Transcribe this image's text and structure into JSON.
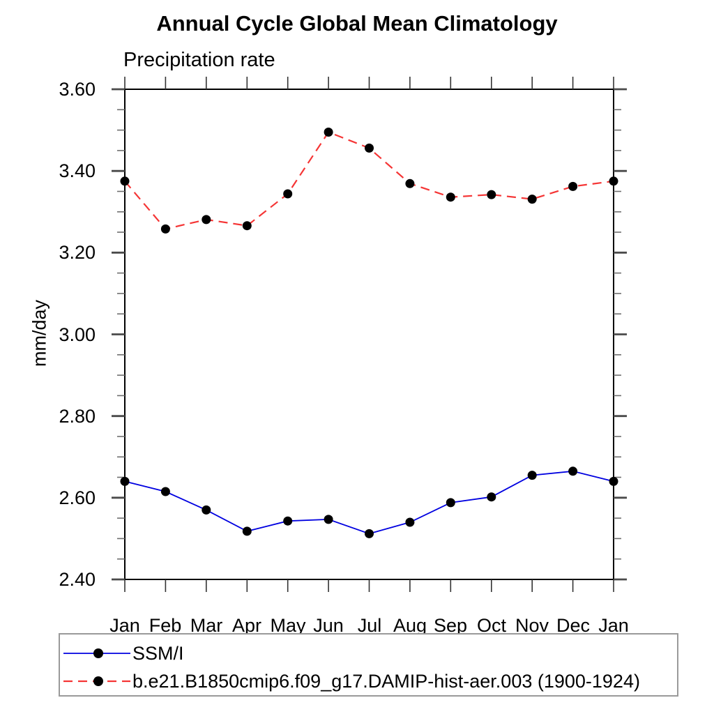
{
  "chart_data": {
    "type": "line",
    "title": "Annual Cycle Global Mean Climatology",
    "subtitle": "Precipitation rate",
    "ylabel": "mm/day",
    "xlabel": "",
    "categories": [
      "Jan",
      "Feb",
      "Mar",
      "Apr",
      "May",
      "Jun",
      "Jul",
      "Aug",
      "Sep",
      "Oct",
      "Nov",
      "Dec",
      "Jan"
    ],
    "ylim": [
      2.4,
      3.6
    ],
    "yticks": [
      "2.40",
      "2.60",
      "2.80",
      "3.00",
      "3.20",
      "3.40",
      "3.60"
    ],
    "ytick_step": 0.2,
    "ytick_minor_step": 0.05,
    "grid": false,
    "legend_position": "bottom-left-box",
    "axis_color": "#000000",
    "marker_color": "#000000",
    "series": [
      {
        "name": "SSM/I",
        "color": "#0000e0",
        "line_style": "solid",
        "marker": "circle",
        "values": [
          2.64,
          2.615,
          2.57,
          2.518,
          2.543,
          2.547,
          2.512,
          2.54,
          2.588,
          2.602,
          2.655,
          2.665,
          2.64
        ]
      },
      {
        "name": "b.e21.B1850cmip6.f09_g17.DAMIP-hist-aer.003 (1900-1924)",
        "color": "#f53535",
        "line_style": "dashed",
        "marker": "circle",
        "values": [
          3.375,
          3.258,
          3.281,
          3.266,
          3.344,
          3.495,
          3.456,
          3.369,
          3.336,
          3.342,
          3.331,
          3.362,
          3.375
        ]
      }
    ]
  }
}
